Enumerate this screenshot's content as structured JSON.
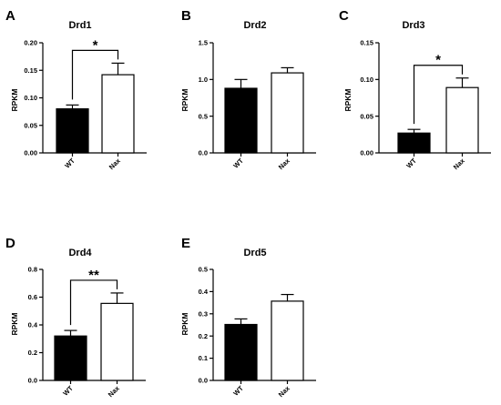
{
  "chart_data": [
    {
      "type": "bar",
      "panel": "A",
      "title": "Drd1",
      "ylabel": "RPKM",
      "categories": [
        "WT",
        "Nax"
      ],
      "values": [
        0.08,
        0.142
      ],
      "errors": [
        0.007,
        0.021
      ],
      "fills": [
        "#000000",
        "#ffffff"
      ],
      "ylim": [
        0,
        0.2
      ],
      "yticks": [
        "0.00",
        "0.05",
        "0.10",
        "0.15",
        "0.20"
      ],
      "significance": "*"
    },
    {
      "type": "bar",
      "panel": "B",
      "title": "Drd2",
      "ylabel": "RPKM",
      "categories": [
        "WT",
        "Nax"
      ],
      "values": [
        0.88,
        1.09
      ],
      "errors": [
        0.12,
        0.07
      ],
      "fills": [
        "#000000",
        "#ffffff"
      ],
      "ylim": [
        0,
        1.5
      ],
      "yticks": [
        "0.0",
        "0.5",
        "1.0",
        "1.5"
      ],
      "significance": ""
    },
    {
      "type": "bar",
      "panel": "C",
      "title": "Drd3",
      "ylabel": "RPKM",
      "categories": [
        "WT",
        "Nax"
      ],
      "values": [
        0.027,
        0.089
      ],
      "errors": [
        0.005,
        0.013
      ],
      "fills": [
        "#000000",
        "#ffffff"
      ],
      "ylim": [
        0,
        0.15
      ],
      "yticks": [
        "0.00",
        "0.05",
        "0.10",
        "0.15"
      ],
      "significance": "*"
    },
    {
      "type": "bar",
      "panel": "D",
      "title": "Drd4",
      "ylabel": "RPKM",
      "categories": [
        "WT",
        "Nax"
      ],
      "values": [
        0.32,
        0.555
      ],
      "errors": [
        0.04,
        0.075
      ],
      "fills": [
        "#000000",
        "#ffffff"
      ],
      "ylim": [
        0,
        0.8
      ],
      "yticks": [
        "0.0",
        "0.2",
        "0.4",
        "0.6",
        "0.8"
      ],
      "significance": "**"
    },
    {
      "type": "bar",
      "panel": "E",
      "title": "Drd5",
      "ylabel": "RPKM",
      "categories": [
        "WT",
        "Nax"
      ],
      "values": [
        0.252,
        0.357
      ],
      "errors": [
        0.025,
        0.03
      ],
      "fills": [
        "#000000",
        "#ffffff"
      ],
      "ylim": [
        0,
        0.5
      ],
      "yticks": [
        "0.0",
        "0.1",
        "0.2",
        "0.3",
        "0.4",
        "0.5"
      ],
      "significance": ""
    }
  ]
}
